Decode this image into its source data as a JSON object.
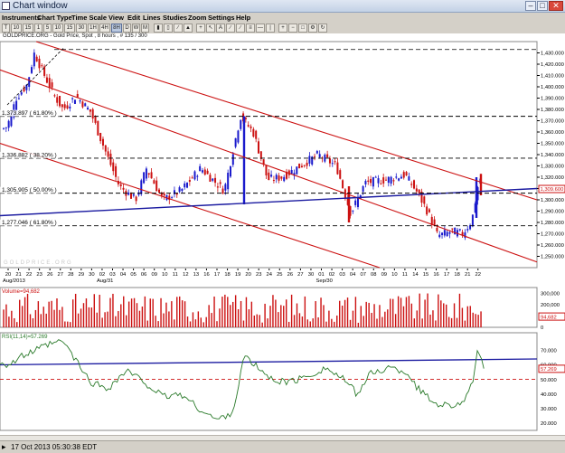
{
  "window": {
    "title": "Chart window",
    "min": "–",
    "max": "□",
    "close": "✕"
  },
  "menu": [
    "Instruments",
    "Chart Type",
    "Time Scale",
    "View",
    "Edit",
    "Lines",
    "Studies",
    "Zoom",
    "Settings",
    "Help"
  ],
  "toolbar": {
    "periods": [
      "T",
      "10",
      "15",
      "1",
      "5",
      "10",
      "15",
      "30",
      "1H",
      "4H",
      "8H",
      "D",
      "W",
      "M"
    ],
    "active_period": "8H"
  },
  "info_text": "GOLDPRICE.ORG - Gold Price, Spot , 8 hours , # 135 / 300",
  "watermark": "GOLDPRICE.ORG",
  "price_panel": {
    "ylim": [
      1240,
      1440
    ],
    "y_ticks": [
      "1,430.000",
      "1,420.000",
      "1,410.000",
      "1,400.000",
      "1,390.000",
      "1,380.000",
      "1,370.000",
      "1,360.000",
      "1,350.000",
      "1,340.000",
      "1,330.000",
      "1,320.000",
      "1,310.000",
      "1,300.000",
      "1,290.000",
      "1,280.000",
      "1,270.000",
      "1,260.000",
      "1,250.000"
    ],
    "y_tick_values": [
      1430,
      1420,
      1410,
      1400,
      1390,
      1380,
      1370,
      1360,
      1350,
      1340,
      1330,
      1320,
      1310,
      1300,
      1290,
      1280,
      1270,
      1260,
      1250
    ],
    "current_price_label": "1,309.600",
    "current_price": 1309.6,
    "fib_levels": [
      {
        "label": "1,373.897 ( 61.80% )",
        "value": 1373.897
      },
      {
        "label": "1,336.882 ( 38.20% )",
        "value": 1336.882
      },
      {
        "label": "1,305.905 ( 50.00% )",
        "value": 1305.905
      },
      {
        "label": "1,277.046 ( 61.80% )",
        "value": 1277.046
      }
    ],
    "top_level": 1433
  },
  "x_axis": {
    "day_labels": [
      "20",
      "21",
      "22",
      "23",
      "26",
      "27",
      "28",
      "29",
      "30",
      "02",
      "03",
      "04",
      "05",
      "06",
      "09",
      "10",
      "11",
      "12",
      "13",
      "16",
      "17",
      "18",
      "19",
      "20",
      "23",
      "24",
      "25",
      "26",
      "27",
      "30",
      "01",
      "02",
      "03",
      "04",
      "07",
      "08",
      "09",
      "10",
      "11",
      "14",
      "15",
      "16",
      "17",
      "18",
      "21",
      "22"
    ],
    "month_labels": [
      {
        "label": "Aug/2013",
        "index": 0
      },
      {
        "label": "Aug/31",
        "index": 9
      },
      {
        "label": "Sep/30",
        "index": 30
      }
    ]
  },
  "volume_panel": {
    "label": "Volume=94,682",
    "ylim": [
      0,
      350000
    ],
    "y_ticks": [
      "300,000",
      "200,000",
      "100,000",
      "0"
    ],
    "y_tick_values": [
      300000,
      200000,
      100000,
      0
    ],
    "current_label": "94,682",
    "current": 94682
  },
  "rsi_panel": {
    "label": "RSI(11,14)=57.269",
    "ylim": [
      15,
      82
    ],
    "y_ticks": [
      "70.000",
      "60.000",
      "50.000",
      "40.000",
      "30.000",
      "20.000"
    ],
    "y_tick_values": [
      70,
      60,
      50,
      40,
      30,
      20
    ],
    "current_label": "57.269",
    "current": 57.269,
    "ref_level": 50
  },
  "colors": {
    "up": "#1a1acc",
    "down": "#cc1111",
    "channel": "#cc1111",
    "trend": "#1a1aa0",
    "rsi": "#2a7a2a",
    "dashed": "#000000"
  },
  "status": {
    "time": "17 Oct 2013 05:30:38 EDT"
  }
}
